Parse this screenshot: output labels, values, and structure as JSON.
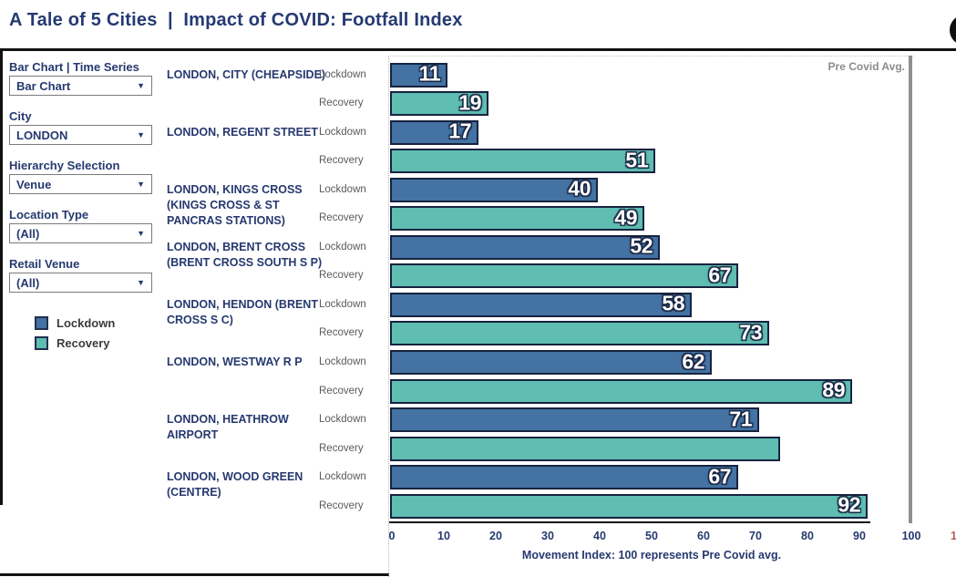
{
  "header": {
    "title": "A Tale of 5 Cities  |  Impact of COVID: Footfall Index"
  },
  "sidebar": {
    "controls": [
      {
        "label": "Bar Chart | Time Series",
        "value": "Bar Chart"
      },
      {
        "label": "City",
        "value": "LONDON"
      },
      {
        "label": "Hierarchy Selection",
        "value": "Venue"
      },
      {
        "label": "Location Type",
        "value": "(All)"
      },
      {
        "label": "Retail Venue",
        "value": "(All)"
      }
    ],
    "legend": [
      {
        "label": "Lockdown",
        "color": "#4372a3"
      },
      {
        "label": "Recovery",
        "color": "#5fbdb2"
      }
    ]
  },
  "chart": {
    "row_labels": {
      "lockdown": "Lockdown",
      "recovery": "Recovery"
    },
    "reference_line_label": "Pre Covid Avg.",
    "axis_caption": "Movement Index: 100 represents Pre Covid avg.",
    "partial_right_tick": "1"
  },
  "chart_data": {
    "type": "bar",
    "orientation": "horizontal",
    "title": "A Tale of 5 Cities | Impact of COVID: Footfall Index",
    "xlabel": "Movement Index: 100 represents Pre Covid avg.",
    "xlim": [
      0,
      100
    ],
    "x_ticks": [
      0,
      10,
      20,
      30,
      40,
      50,
      60,
      70,
      80,
      90,
      100
    ],
    "reference_line": {
      "x": 100,
      "label": "Pre Covid Avg."
    },
    "legend_position": "left",
    "series_names": [
      "Lockdown",
      "Recovery"
    ],
    "series_colors": {
      "Lockdown": "#4372a3",
      "Recovery": "#5fbdb2"
    },
    "groups": [
      {
        "name": "LONDON, CITY (CHEAPSIDE)",
        "lockdown": 11,
        "recovery": 19,
        "lockdown_label": "11",
        "recovery_label": "19"
      },
      {
        "name": "LONDON, REGENT STREET",
        "lockdown": 17,
        "recovery": 51,
        "lockdown_label": "17",
        "recovery_label": "51"
      },
      {
        "name": "LONDON, KINGS CROSS (KINGS CROSS & ST PANCRAS STATIONS)",
        "lockdown": 40,
        "recovery": 49,
        "lockdown_label": "40",
        "recovery_label": "49"
      },
      {
        "name": "LONDON, BRENT CROSS (BRENT CROSS SOUTH S P)",
        "lockdown": 52,
        "recovery": 67,
        "lockdown_label": "52",
        "recovery_label": "67"
      },
      {
        "name": "LONDON, HENDON (BRENT CROSS S C)",
        "lockdown": 58,
        "recovery": 73,
        "lockdown_label": "58",
        "recovery_label": "73"
      },
      {
        "name": "LONDON, WESTWAY R P",
        "lockdown": 62,
        "recovery": 89,
        "lockdown_label": "62",
        "recovery_label": "89"
      },
      {
        "name": "LONDON, HEATHROW AIRPORT",
        "lockdown": 71,
        "recovery": 75,
        "lockdown_label": "71",
        "recovery_label": ""
      },
      {
        "name": "LONDON, WOOD GREEN (CENTRE)",
        "lockdown": 67,
        "recovery": 92,
        "lockdown_label": "67",
        "recovery_label": "92"
      }
    ]
  },
  "colors": {
    "title_navy": "#253a72",
    "lockdown_blue": "#4372a3",
    "recovery_teal": "#5fbdb2",
    "bar_border": "#17233f",
    "reference_gray": "#8f8f8f"
  }
}
